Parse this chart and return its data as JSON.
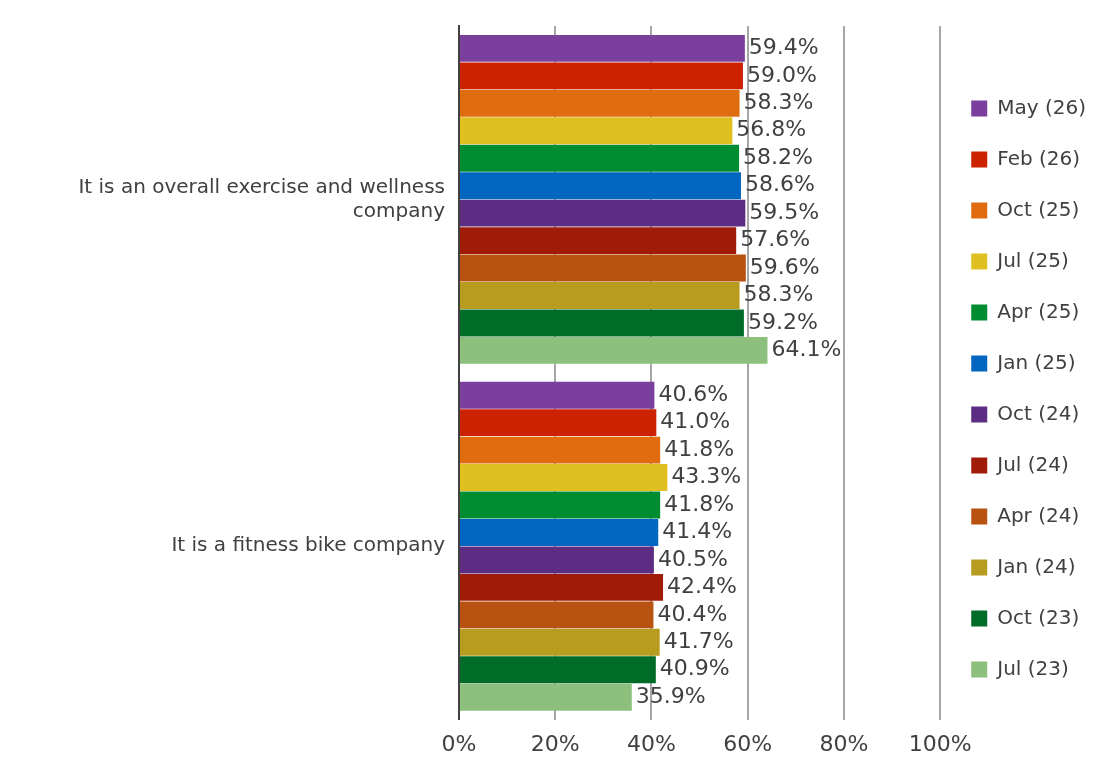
{
  "chart_data": {
    "type": "bar",
    "orientation": "horizontal",
    "categories": [
      "It is an overall exercise and wellness company",
      "It is a fitness bike company"
    ],
    "series": [
      {
        "name": "May (26)",
        "color": "#7b3f9e",
        "values": [
          59.4,
          40.6
        ],
        "value_labels": [
          "59.4%",
          "40.6%"
        ]
      },
      {
        "name": "Feb (26)",
        "color": "#cc2200",
        "values": [
          59.0,
          41.0
        ],
        "value_labels": [
          "59.0%",
          "41.0%"
        ]
      },
      {
        "name": "Oct (25)",
        "color": "#e06c10",
        "values": [
          58.3,
          41.8
        ],
        "value_labels": [
          "58.3%",
          "41.8%"
        ]
      },
      {
        "name": "Jul (25)",
        "color": "#e0c020",
        "values": [
          56.8,
          43.3
        ],
        "value_labels": [
          "56.8%",
          "43.3%"
        ]
      },
      {
        "name": "Apr (25)",
        "color": "#008c30",
        "values": [
          58.2,
          41.8
        ],
        "value_labels": [
          "58.2%",
          "41.8%"
        ]
      },
      {
        "name": "Jan (25)",
        "color": "#0066c0",
        "values": [
          58.6,
          41.4
        ],
        "value_labels": [
          "58.6%",
          "41.4%"
        ]
      },
      {
        "name": "Oct (24)",
        "color": "#5c2d82",
        "values": [
          59.5,
          40.5
        ],
        "value_labels": [
          "59.5%",
          "40.5%"
        ]
      },
      {
        "name": "Jul (24)",
        "color": "#a01c08",
        "values": [
          57.6,
          42.4
        ],
        "value_labels": [
          "57.6%",
          "42.4%"
        ]
      },
      {
        "name": "Apr (24)",
        "color": "#b85210",
        "values": [
          59.6,
          40.4
        ],
        "value_labels": [
          "59.6%",
          "40.4%"
        ]
      },
      {
        "name": "Jan (24)",
        "color": "#b89c20",
        "values": [
          58.3,
          41.7
        ],
        "value_labels": [
          "58.3%",
          "41.7%"
        ]
      },
      {
        "name": "Oct (23)",
        "color": "#006c28",
        "values": [
          59.2,
          40.9
        ],
        "value_labels": [
          "59.2%",
          "40.9%"
        ]
      },
      {
        "name": "Jul (23)",
        "color": "#8cc07c",
        "values": [
          64.1,
          35.9
        ],
        "value_labels": [
          "64.1%",
          "35.9%"
        ]
      }
    ],
    "xlim": [
      0,
      100
    ],
    "xticks": [
      {
        "value": 0,
        "label": "0%"
      },
      {
        "value": 20,
        "label": "20%"
      },
      {
        "value": 40,
        "label": "40%"
      },
      {
        "value": 60,
        "label": "60%"
      },
      {
        "value": 80,
        "label": "80%"
      },
      {
        "value": 100,
        "label": "100%"
      }
    ],
    "grid": "x",
    "legend": "right"
  }
}
